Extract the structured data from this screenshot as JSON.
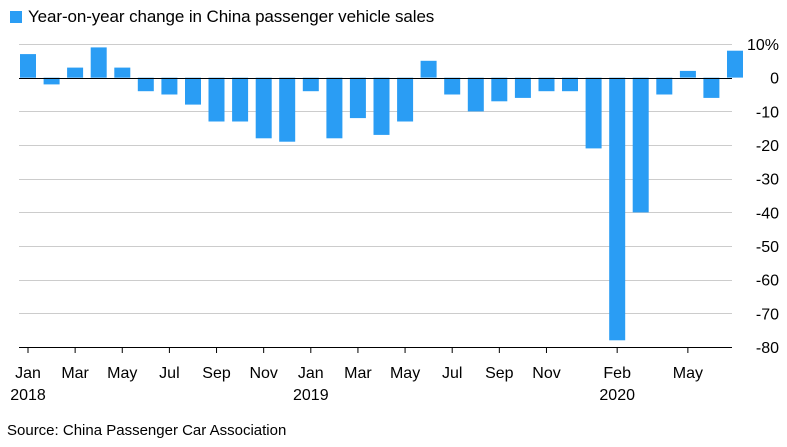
{
  "legend": {
    "label": "Year-on-year change in China passenger vehicle sales"
  },
  "source": "Source: China Passenger Car Association",
  "colors": {
    "bar": "#2a9df4",
    "grid": "#cccccc",
    "zero_line": "#000000"
  },
  "chart_data": {
    "type": "bar",
    "categories": [
      "2018-01",
      "2018-02",
      "2018-03",
      "2018-04",
      "2018-05",
      "2018-06",
      "2018-07",
      "2018-08",
      "2018-09",
      "2018-10",
      "2018-11",
      "2018-12",
      "2019-01",
      "2019-02",
      "2019-03",
      "2019-04",
      "2019-05",
      "2019-06",
      "2019-07",
      "2019-08",
      "2019-09",
      "2019-10",
      "2019-11",
      "2019-12",
      "2020-01",
      "2020-02",
      "2020-03",
      "2020-04",
      "2020-05",
      "2020-06",
      "2020-07"
    ],
    "series": [
      {
        "name": "Year-on-year change in China passenger vehicle sales",
        "values": [
          7,
          -2,
          3,
          9,
          3,
          -4,
          -5,
          -8,
          -13,
          -13,
          -18,
          -19,
          -4,
          -18,
          -12,
          -17,
          -13,
          5,
          -5,
          -10,
          -7,
          -6,
          -4,
          -4,
          -21,
          -78,
          -40,
          -5,
          2,
          -6,
          8
        ]
      }
    ],
    "ylim": [
      -80,
      10
    ],
    "y_ticks": [
      10,
      0,
      -10,
      -20,
      -30,
      -40,
      -50,
      -60,
      -70,
      -80
    ],
    "y_tick_labels": [
      "10%",
      "0",
      "-10",
      "-20",
      "-30",
      "-40",
      "-50",
      "-60",
      "-70",
      "-80"
    ],
    "y_axis_side": "right",
    "x_tick_labels": [
      {
        "index": 0,
        "month": "Jan",
        "year": "2018"
      },
      {
        "index": 2,
        "month": "Mar",
        "year": ""
      },
      {
        "index": 4,
        "month": "May",
        "year": ""
      },
      {
        "index": 6,
        "month": "Jul",
        "year": ""
      },
      {
        "index": 8,
        "month": "Sep",
        "year": ""
      },
      {
        "index": 10,
        "month": "Nov",
        "year": ""
      },
      {
        "index": 12,
        "month": "Jan",
        "year": "2019"
      },
      {
        "index": 14,
        "month": "Mar",
        "year": ""
      },
      {
        "index": 16,
        "month": "May",
        "year": ""
      },
      {
        "index": 18,
        "month": "Jul",
        "year": ""
      },
      {
        "index": 20,
        "month": "Sep",
        "year": ""
      },
      {
        "index": 22,
        "month": "Nov",
        "year": ""
      },
      {
        "index": 25,
        "month": "Feb",
        "year": "2020"
      },
      {
        "index": 28,
        "month": "May",
        "year": ""
      }
    ],
    "grid": true,
    "legend_position": "top-left"
  }
}
